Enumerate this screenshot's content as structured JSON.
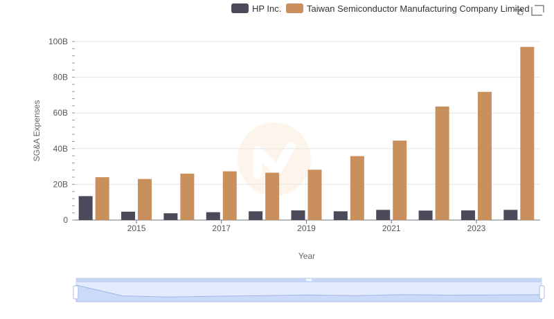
{
  "chart_data": {
    "type": "bar",
    "title": "",
    "xlabel": "Year",
    "ylabel": "SG&A Expenses",
    "x": [
      2014,
      2015,
      2016,
      2017,
      2018,
      2019,
      2020,
      2021,
      2022,
      2023,
      2024
    ],
    "x_tick_labels": [
      "2015",
      "2017",
      "2019",
      "2021",
      "2023"
    ],
    "y_tick_labels": [
      "0",
      "20B",
      "40B",
      "60B",
      "80B",
      "100B"
    ],
    "ylim": [
      0,
      100
    ],
    "y_unit": "B",
    "grid": true,
    "legend_position": "top-right",
    "series": [
      {
        "name": "HP Inc.",
        "color": "#4a4a5a",
        "values": [
          13.4,
          4.7,
          3.8,
          4.4,
          4.9,
          5.4,
          4.9,
          5.7,
          5.3,
          5.4,
          5.7
        ]
      },
      {
        "name": "Taiwan Semiconductor Manufacturing Company Limited",
        "color": "#c9905e",
        "values": [
          24.0,
          23.0,
          26.0,
          27.3,
          26.5,
          28.2,
          35.8,
          44.5,
          63.6,
          71.8,
          97.0
        ]
      }
    ]
  },
  "toolbar": {
    "icons": [
      "zoom-icon",
      "restore-icon"
    ]
  },
  "datazoom": {
    "start_pct": 0,
    "end_pct": 100
  }
}
